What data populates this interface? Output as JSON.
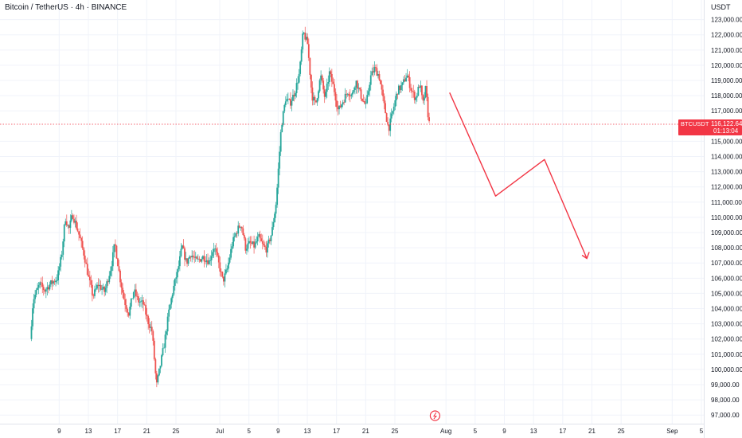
{
  "header": {
    "title": "Bitcoin / TetherUS · 4h · BINANCE",
    "currency": "USDT"
  },
  "colors": {
    "up": "#26a69a",
    "down": "#ef5350",
    "projection": "#f23645",
    "price_line": "#f23645",
    "grid": "#f0f3fa",
    "text": "#131722"
  },
  "chart_data": {
    "type": "candlestick",
    "symbol": "BTCUSDT",
    "interval": "4h",
    "exchange": "BINANCE",
    "ylim": [
      96500,
      123600
    ],
    "y_ticks": [
      "97,000.00",
      "98,000.00",
      "99,000.00",
      "100,000.00",
      "101,000.00",
      "102,000.00",
      "103,000.00",
      "104,000.00",
      "105,000.00",
      "106,000.00",
      "107,000.00",
      "108,000.00",
      "109,000.00",
      "110,000.00",
      "111,000.00",
      "112,000.00",
      "113,000.00",
      "114,000.00",
      "115,000.00",
      "117,000.00",
      "118,000.00",
      "119,000.00",
      "120,000.00",
      "121,000.00",
      "122,000.00",
      "123,000.00"
    ],
    "x_range_days": [
      0,
      96
    ],
    "x_ticks": [
      {
        "label": "9",
        "day": 8
      },
      {
        "label": "13",
        "day": 12
      },
      {
        "label": "17",
        "day": 16
      },
      {
        "label": "21",
        "day": 20
      },
      {
        "label": "25",
        "day": 24
      },
      {
        "label": "Jul",
        "day": 30
      },
      {
        "label": "5",
        "day": 34
      },
      {
        "label": "9",
        "day": 38
      },
      {
        "label": "13",
        "day": 42
      },
      {
        "label": "17",
        "day": 46
      },
      {
        "label": "21",
        "day": 50
      },
      {
        "label": "25",
        "day": 54
      },
      {
        "label": "Aug",
        "day": 61
      },
      {
        "label": "5",
        "day": 65
      },
      {
        "label": "9",
        "day": 69
      },
      {
        "label": "13",
        "day": 73
      },
      {
        "label": "17",
        "day": 77
      },
      {
        "label": "21",
        "day": 81
      },
      {
        "label": "25",
        "day": 85
      },
      {
        "label": "Sep",
        "day": 92
      },
      {
        "label": "5",
        "day": 96
      }
    ],
    "price_path": [
      [
        4.2,
        102000
      ],
      [
        4.6,
        104600
      ],
      [
        5.5,
        105600
      ],
      [
        6.2,
        105200
      ],
      [
        6.9,
        105600
      ],
      [
        7.9,
        106000
      ],
      [
        8.5,
        107500
      ],
      [
        9.0,
        110000
      ],
      [
        9.5,
        109200
      ],
      [
        10.0,
        110200
      ],
      [
        10.8,
        109000
      ],
      [
        11.6,
        107500
      ],
      [
        12.2,
        106000
      ],
      [
        12.8,
        104800
      ],
      [
        13.5,
        105600
      ],
      [
        14.4,
        105100
      ],
      [
        15.3,
        106800
      ],
      [
        15.8,
        108300
      ],
      [
        16.5,
        106000
      ],
      [
        17.1,
        104500
      ],
      [
        17.7,
        103700
      ],
      [
        18.4,
        105200
      ],
      [
        19.0,
        104500
      ],
      [
        19.7,
        104300
      ],
      [
        20.3,
        103200
      ],
      [
        20.9,
        102500
      ],
      [
        21.5,
        98900
      ],
      [
        22.0,
        100200
      ],
      [
        22.6,
        101800
      ],
      [
        23.2,
        103800
      ],
      [
        23.8,
        105300
      ],
      [
        24.5,
        106700
      ],
      [
        25.0,
        108100
      ],
      [
        25.6,
        107000
      ],
      [
        26.2,
        107600
      ],
      [
        27.0,
        107100
      ],
      [
        27.9,
        107400
      ],
      [
        28.7,
        107100
      ],
      [
        29.4,
        108100
      ],
      [
        29.9,
        107200
      ],
      [
        30.6,
        105800
      ],
      [
        31.2,
        106600
      ],
      [
        31.9,
        108300
      ],
      [
        32.5,
        109100
      ],
      [
        33.1,
        109600
      ],
      [
        33.7,
        108000
      ],
      [
        34.3,
        108300
      ],
      [
        34.9,
        108100
      ],
      [
        35.5,
        108700
      ],
      [
        36.1,
        108100
      ],
      [
        36.6,
        107900
      ],
      [
        37.3,
        109000
      ],
      [
        37.9,
        111000
      ],
      [
        38.6,
        116000
      ],
      [
        39.2,
        117800
      ],
      [
        39.8,
        117500
      ],
      [
        40.5,
        118300
      ],
      [
        41.1,
        119500
      ],
      [
        41.6,
        122200
      ],
      [
        42.2,
        121400
      ],
      [
        42.8,
        118000
      ],
      [
        43.3,
        117400
      ],
      [
        44.0,
        119300
      ],
      [
        44.6,
        117800
      ],
      [
        45.2,
        119500
      ],
      [
        45.8,
        118500
      ],
      [
        46.4,
        117000
      ],
      [
        47.0,
        117600
      ],
      [
        47.7,
        118300
      ],
      [
        48.3,
        118000
      ],
      [
        48.8,
        119000
      ],
      [
        49.5,
        118000
      ],
      [
        50.2,
        117300
      ],
      [
        50.8,
        119200
      ],
      [
        51.4,
        119800
      ],
      [
        52.0,
        119300
      ],
      [
        52.6,
        117600
      ],
      [
        53.3,
        115800
      ],
      [
        53.9,
        117000
      ],
      [
        54.5,
        118300
      ],
      [
        55.2,
        118700
      ],
      [
        55.8,
        119400
      ],
      [
        56.4,
        118400
      ],
      [
        57.0,
        117800
      ],
      [
        57.6,
        118800
      ],
      [
        58.0,
        117400
      ],
      [
        58.4,
        118500
      ],
      [
        58.8,
        116200
      ]
    ],
    "current_price": {
      "symbol": "BTCUSDT",
      "price": "116,122.64",
      "countdown": "01:13:04",
      "value": 116122.64
    },
    "projection": {
      "description": "hand-drawn bearish path",
      "points": [
        [
          61.5,
          118200
        ],
        [
          67.8,
          111400
        ],
        [
          74.5,
          113800
        ],
        [
          80.3,
          107300
        ]
      ]
    }
  }
}
